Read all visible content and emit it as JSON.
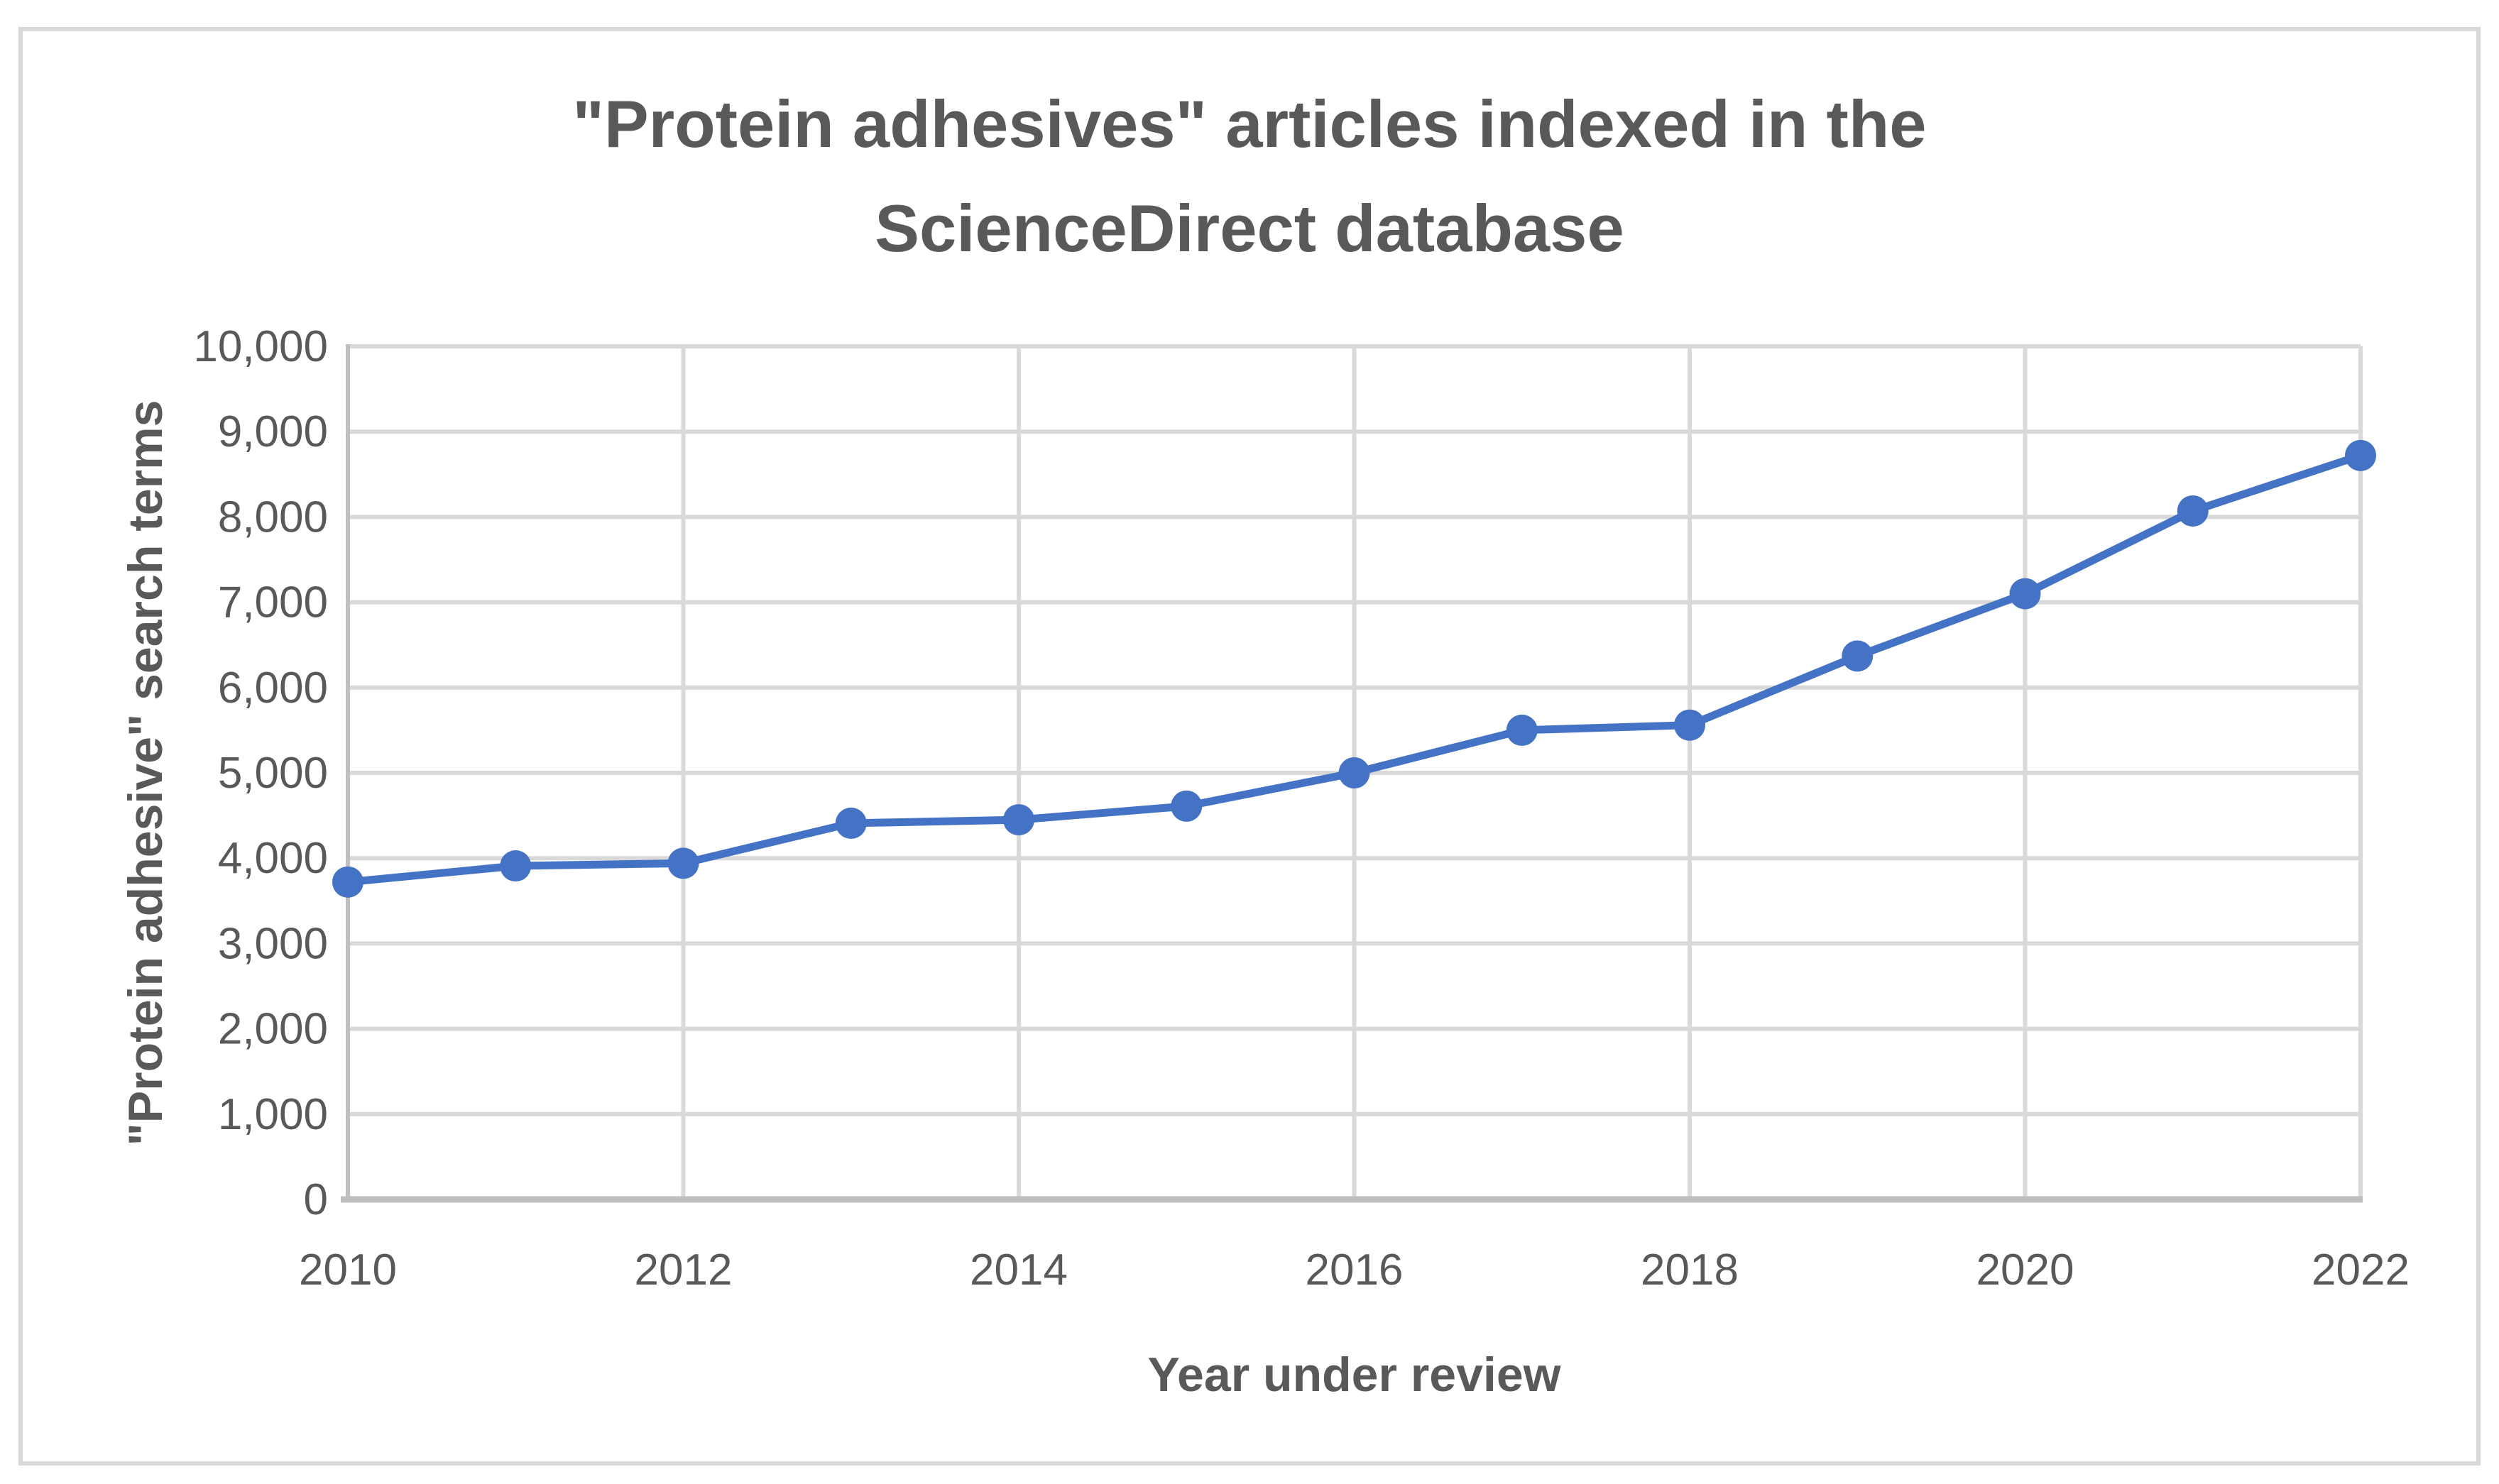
{
  "window": {
    "background": "#ffffff",
    "border_color": "#d9d9d9"
  },
  "chart": {
    "title": "\"Protein adhesives\" articles indexed in the\nScienceDirect database",
    "y_axis_title": "\"Protein adhesive\" search terms",
    "x_axis_title": "Year under review"
  },
  "chart_data": {
    "type": "line",
    "title": "\"Protein adhesives\" articles indexed in the ScienceDirect database",
    "xlabel": "Year under review",
    "ylabel": "\"Protein adhesive\" search terms",
    "x": [
      2010,
      2011,
      2012,
      2013,
      2014,
      2015,
      2016,
      2017,
      2018,
      2019,
      2020,
      2021,
      2022
    ],
    "series": [
      {
        "name": "\"Protein adhesive\" search terms",
        "values": [
          3720,
          3910,
          3940,
          4410,
          4450,
          4610,
          5000,
          5500,
          5560,
          6370,
          7100,
          8070,
          8720
        ]
      }
    ],
    "xlim": [
      2010,
      2022
    ],
    "ylim": [
      0,
      10000
    ],
    "y_ticks": [
      0,
      1000,
      2000,
      3000,
      4000,
      5000,
      6000,
      7000,
      8000,
      9000,
      10000
    ],
    "y_tick_labels": [
      "0",
      "1,000",
      "2,000",
      "3,000",
      "4,000",
      "5,000",
      "6,000",
      "7,000",
      "8,000",
      "9,000",
      "10,000"
    ],
    "x_tick_years": [
      2010,
      2012,
      2014,
      2016,
      2018,
      2020,
      2022
    ],
    "x_tick_labels": [
      "2010",
      "2012",
      "2014",
      "2016",
      "2018",
      "2020",
      "2022"
    ],
    "grid": true,
    "vertical_grid_years": [
      2012,
      2014,
      2016,
      2018,
      2020,
      2022
    ],
    "legend_position": "none",
    "marker": "circle",
    "colors": {
      "series": "#4472c4",
      "gridline": "#d9d9d9",
      "axis": "#bfbfbf",
      "text": "#595959"
    }
  }
}
